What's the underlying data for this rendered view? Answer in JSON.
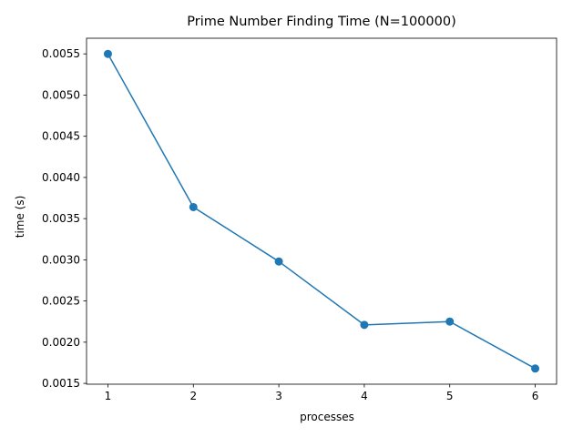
{
  "chart_data": {
    "type": "line",
    "title": "Prime Number Finding Time (N=100000)",
    "xlabel": "processes",
    "ylabel": "time (s)",
    "x": [
      1,
      2,
      3,
      4,
      5,
      6
    ],
    "series": [
      {
        "values": [
          0.0055,
          0.00364,
          0.00298,
          0.00221,
          0.00225,
          0.00168
        ],
        "color": "#1f77b4",
        "marker": "circle"
      }
    ],
    "xticks": [
      1,
      2,
      3,
      4,
      5,
      6
    ],
    "xtick_labels": [
      "1",
      "2",
      "3",
      "4",
      "5",
      "6"
    ],
    "yticks": [
      0.0015,
      0.002,
      0.0025,
      0.003,
      0.0035,
      0.004,
      0.0045,
      0.005,
      0.0055
    ],
    "ytick_labels": [
      "0.0015",
      "0.0020",
      "0.0025",
      "0.0030",
      "0.0035",
      "0.0040",
      "0.0045",
      "0.0050",
      "0.0055"
    ],
    "xlim": [
      0.75,
      6.25
    ],
    "ylim": [
      0.00149,
      0.00569
    ],
    "grid": false
  }
}
